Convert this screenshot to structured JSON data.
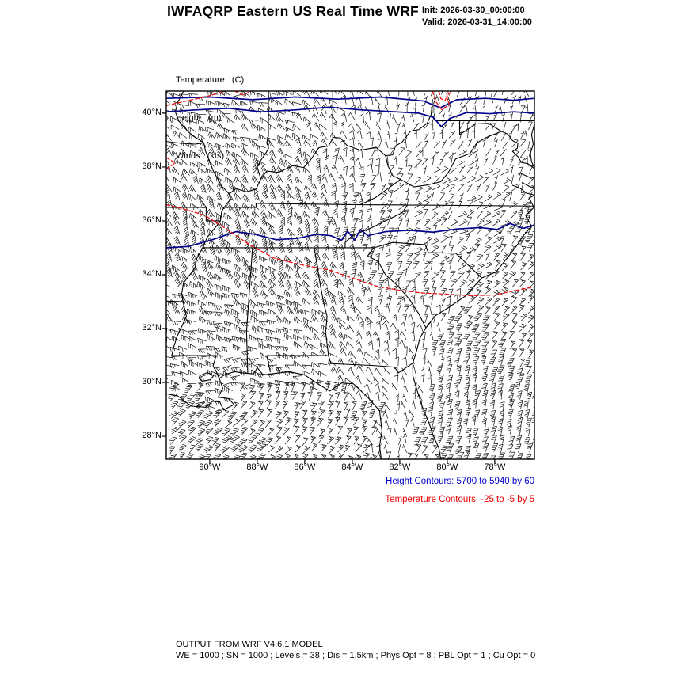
{
  "header": {
    "title": "IWFAQRP Eastern US Real Time WRF",
    "init_label": "Init: 2026-03-30_00:00:00",
    "valid_label": "Valid: 2026-03-31_14:00:00"
  },
  "legend": {
    "temperature": "Temperature   (C)",
    "height": "Height   (m)",
    "winds": "Winds   (kts)"
  },
  "map": {
    "lat_ticks": [
      "40°N",
      "38°N",
      "36°N",
      "34°N",
      "32°N",
      "30°N",
      "28°N"
    ],
    "lat_values": [
      40,
      38,
      36,
      34,
      32,
      30,
      28
    ],
    "lon_ticks": [
      "90°W",
      "88°W",
      "86°W",
      "84°W",
      "82°W",
      "80°W",
      "78°W"
    ],
    "lon_values": [
      -90,
      -88,
      -86,
      -84,
      -82,
      -80,
      -78
    ],
    "extent": {
      "lon_min": -91.83,
      "lon_max": -76.33,
      "lat_min": 27.15,
      "lat_max": 40.82
    }
  },
  "contours": {
    "height": {
      "start": 5700,
      "end": 5940,
      "interval": 60
    },
    "temperature": {
      "start": -25,
      "end": -5,
      "interval": 5
    }
  },
  "captions": {
    "height_contours": "Height Contours: 5700 to 5940 by 60",
    "temperature_contours": "Temperature Contours: -25 to -5 by 5"
  },
  "footer": {
    "line1": "OUTPUT FROM WRF V4.6.1 MODEL",
    "line2": "WE = 1000 ; SN = 1000 ; Levels = 38 ; Dis = 1.5km ; Phys Opt = 8 ; PBL Opt = 1 ; Cu Opt = 0"
  },
  "colors": {
    "height_contour": "#00008B",
    "height_caption": "#0000CC",
    "temperature_contour": "#EE1111",
    "temperature_caption": "#EE0000",
    "boundary": "#000000",
    "wind_barb": "#111111",
    "frame": "#000000"
  }
}
